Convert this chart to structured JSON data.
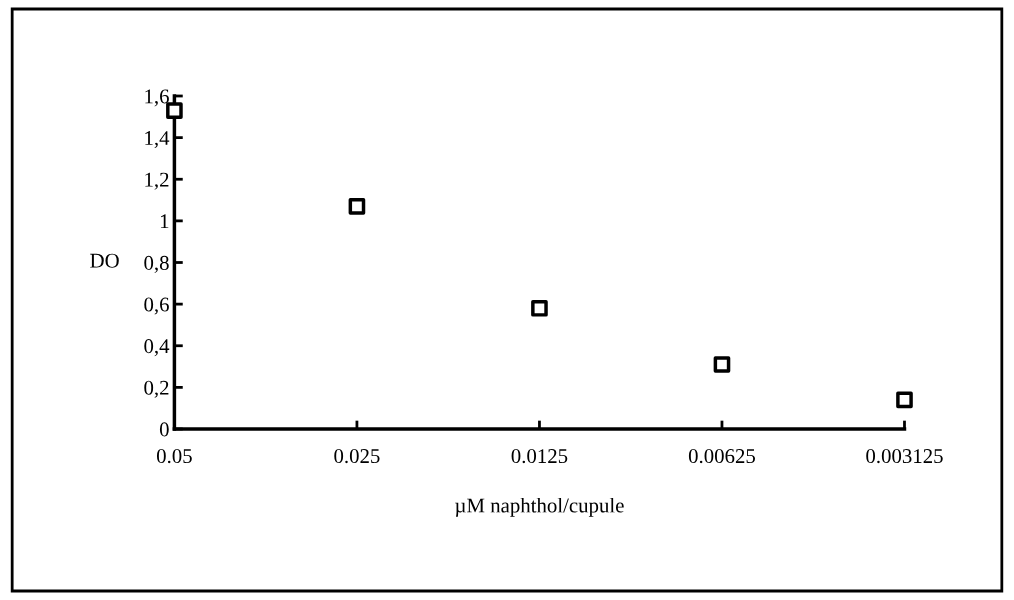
{
  "chart_data": {
    "type": "scatter",
    "xlabel": "µM naphthol/cupule",
    "ylabel": "DO",
    "categories": [
      "0.05",
      "0.025",
      "0.0125",
      "0.00625",
      "0.003125"
    ],
    "series": [
      {
        "color": "#000000",
        "values": [
          1.53,
          1.07,
          0.58,
          0.31,
          0.14
        ]
      }
    ],
    "marker": "square",
    "ylim": [
      0,
      1.6
    ],
    "yticks": [
      {
        "value": 0,
        "label": "0"
      },
      {
        "value": 0.2,
        "label": "0,2"
      },
      {
        "value": 0.4,
        "label": "0,4"
      },
      {
        "value": 0.6,
        "label": "0,6"
      },
      {
        "value": 0.8,
        "label": "0,8"
      },
      {
        "value": 1,
        "label": "1"
      },
      {
        "value": 1.2,
        "label": "1,2"
      },
      {
        "value": 1.4,
        "label": "1,4"
      },
      {
        "value": 1.6,
        "label": "1,6"
      }
    ],
    "grid": false,
    "legend": false
  }
}
